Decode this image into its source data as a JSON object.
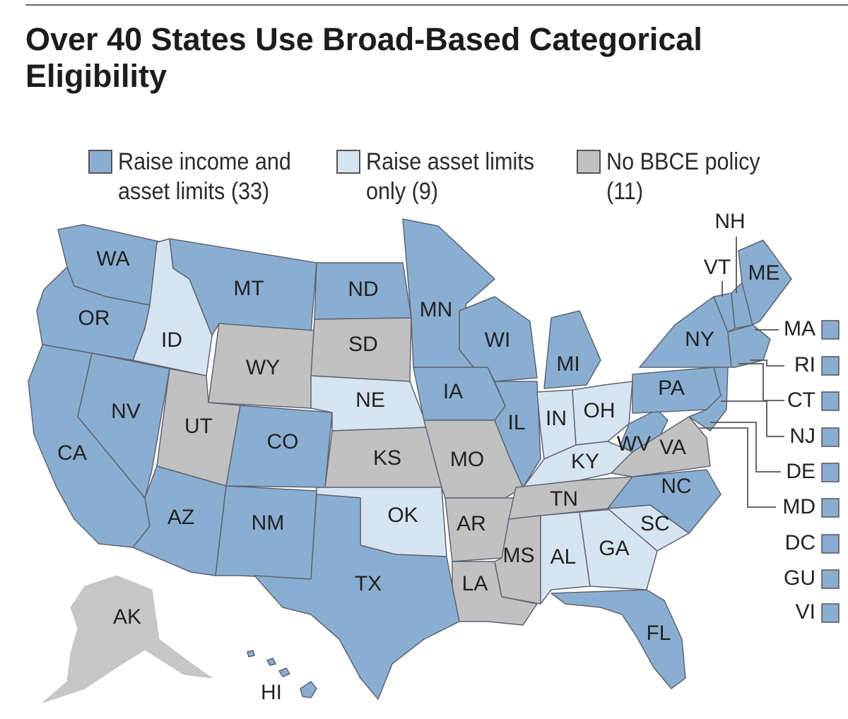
{
  "title": {
    "line1": "Over 40 States Use Broad-Based Categorical",
    "line2": "Eligibility"
  },
  "colors": {
    "raise_income_and_asset": "#8aaed1",
    "raise_asset_only": "#d6e4f1",
    "no_bbce": "#c1c1c1"
  },
  "legend": [
    {
      "key": "raise_income_and_asset",
      "line1": "Raise income and",
      "line2": "asset limits (33)"
    },
    {
      "key": "raise_asset_only",
      "line1": "Raise asset limits",
      "line2": "only (9)"
    },
    {
      "key": "no_bbce",
      "line1": "No BBCE policy",
      "line2": "(11)"
    }
  ],
  "states": {
    "WA": "raise_income_and_asset",
    "OR": "raise_income_and_asset",
    "CA": "raise_income_and_asset",
    "NV": "raise_income_and_asset",
    "ID": "raise_asset_only",
    "MT": "raise_income_and_asset",
    "WY": "no_bbce",
    "UT": "no_bbce",
    "AZ": "raise_income_and_asset",
    "CO": "raise_income_and_asset",
    "NM": "raise_income_and_asset",
    "ND": "raise_income_and_asset",
    "SD": "no_bbce",
    "NE": "raise_asset_only",
    "KS": "no_bbce",
    "OK": "raise_asset_only",
    "TX": "raise_income_and_asset",
    "MN": "raise_income_and_asset",
    "IA": "raise_income_and_asset",
    "MO": "no_bbce",
    "AR": "no_bbce",
    "LA": "no_bbce",
    "WI": "raise_income_and_asset",
    "IL": "raise_income_and_asset",
    "MI": "raise_income_and_asset",
    "IN": "raise_asset_only",
    "OH": "raise_asset_only",
    "KY": "raise_asset_only",
    "TN": "no_bbce",
    "MS": "no_bbce",
    "AL": "raise_asset_only",
    "GA": "raise_asset_only",
    "FL": "raise_income_and_asset",
    "SC": "raise_asset_only",
    "NC": "raise_income_and_asset",
    "VA": "no_bbce",
    "WV": "raise_income_and_asset",
    "PA": "raise_income_and_asset",
    "NY": "raise_income_and_asset",
    "VT": "raise_income_and_asset",
    "NH": "raise_income_and_asset",
    "ME": "raise_income_and_asset",
    "AK": "no_bbce",
    "HI": "raise_income_and_asset"
  },
  "side_labels": [
    "MA",
    "RI",
    "CT",
    "NJ",
    "DE",
    "MD",
    "DC",
    "GU",
    "VI"
  ]
}
